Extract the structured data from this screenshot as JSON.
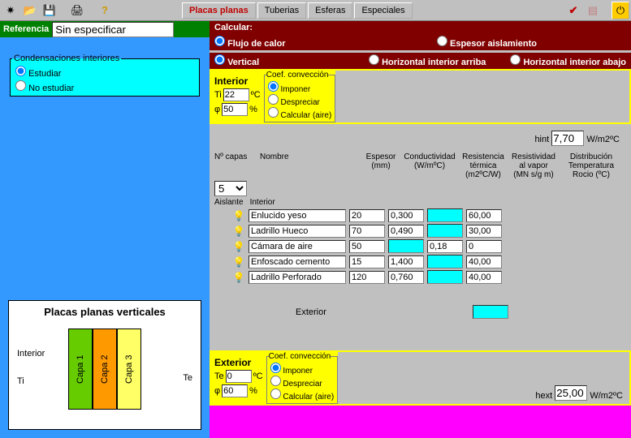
{
  "toolbar": {
    "tabs": [
      "Placas planas",
      "Tuberias",
      "Esferas",
      "Especiales"
    ],
    "active_tab": 0
  },
  "reference": {
    "label": "Referencia",
    "value": "Sin especificar"
  },
  "condensations": {
    "legend": "Condensaciones interiores",
    "opt_study": "Estudiar",
    "opt_nostudy": "No estudiar"
  },
  "diagram": {
    "title": "Placas planas verticales",
    "interior": "Interior",
    "ti": "Ti",
    "te": "Te",
    "capas": [
      {
        "label": "Capa 1",
        "color": "#66cc00"
      },
      {
        "label": "Capa 2",
        "color": "#ff9900"
      },
      {
        "label": "Capa 3",
        "color": "#ffff66"
      }
    ]
  },
  "calc": {
    "header": "Calcular:",
    "flujo": "Flujo de calor",
    "espesor": "Espesor aislamiento",
    "vertical": "Vertical",
    "h_arriba": "Horizontal interior arriba",
    "h_abajo": "Horizontal interior abajo"
  },
  "interior": {
    "label": "Interior",
    "ti_label": "Ti",
    "ti_value": "22",
    "ti_unit": "ºC",
    "phi_value": "50",
    "phi_unit": "%",
    "conv_legend": "Coef. convección",
    "conv_imponer": "Imponer",
    "conv_despreciar": "Despreciar",
    "conv_calcular": "Calcular (aire)",
    "hint_label": "hint",
    "hint_value": "7,70",
    "hint_unit": "W/m2ºC"
  },
  "columns": {
    "ncapas": "Nº capas",
    "nombre": "Nombre",
    "espesor": "Espesor",
    "espesor_u": "(mm)",
    "cond": "Conductividad",
    "cond_u": "(W/mºC)",
    "resist": "Resistencia térmica",
    "resist_u": "(m2ºC/W)",
    "resvap": "Resistividad al vapor",
    "resvap_u": "(MN s/g m)",
    "dist": "Distribución Temperatura Rocio (ºC)"
  },
  "ncapas_value": "5",
  "aislante": "Aislante",
  "interior_word": "Interior",
  "exterior_word": "Exterior",
  "layers": [
    {
      "name": "Enlucido yeso",
      "esp": "20",
      "cond": "0,300",
      "resist": "",
      "vap": "60,00"
    },
    {
      "name": "Ladrillo Hueco",
      "esp": "70",
      "cond": "0,490",
      "resist": "",
      "vap": "30,00"
    },
    {
      "name": "Cámara de aire",
      "esp": "50",
      "cond": "",
      "resist": "0,18",
      "vap": "0"
    },
    {
      "name": "Enfoscado cemento",
      "esp": "15",
      "cond": "1,400",
      "resist": "",
      "vap": "40,00"
    },
    {
      "name": "Ladrillo Perforado",
      "esp": "120",
      "cond": "0,760",
      "resist": "",
      "vap": "40,00"
    }
  ],
  "exterior": {
    "label": "Exterior",
    "te_label": "Te",
    "te_value": "0",
    "te_unit": "ºC",
    "phi_value": "60",
    "phi_unit": "%",
    "hext_label": "hext",
    "hext_value": "25,00",
    "hext_unit": "W/m2ºC"
  }
}
